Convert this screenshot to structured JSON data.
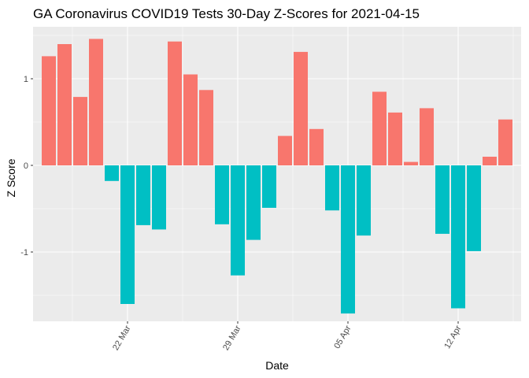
{
  "chart_data": {
    "type": "bar",
    "title": "GA Coronavirus COVID19 Tests 30-Day Z-Scores for 2021-04-15",
    "xlabel": "Date",
    "ylabel": "Z Score",
    "x_tick_labels": [
      "22 Mar",
      "29 Mar",
      "05 Apr",
      "12 Apr"
    ],
    "x_tick_dates": [
      "2021-03-22",
      "2021-03-29",
      "2021-04-05",
      "2021-04-12"
    ],
    "y_ticks": [
      -1,
      0,
      1
    ],
    "y_tick_labels": [
      "-1",
      "0",
      "1"
    ],
    "ylim": [
      -1.8,
      1.6
    ],
    "xlim": [
      "2021-03-16",
      "2021-04-16"
    ],
    "grid": true,
    "legend": "none",
    "colors": {
      "positive": "#F8766D",
      "negative": "#00BFC4",
      "panel": "#EBEBEB",
      "grid": "#FFFFFF"
    },
    "dates": [
      "2021-03-17",
      "2021-03-18",
      "2021-03-19",
      "2021-03-20",
      "2021-03-21",
      "2021-03-22",
      "2021-03-23",
      "2021-03-24",
      "2021-03-25",
      "2021-03-26",
      "2021-03-27",
      "2021-03-28",
      "2021-03-29",
      "2021-03-30",
      "2021-03-31",
      "2021-04-01",
      "2021-04-02",
      "2021-04-03",
      "2021-04-04",
      "2021-04-05",
      "2021-04-06",
      "2021-04-07",
      "2021-04-08",
      "2021-04-09",
      "2021-04-10",
      "2021-04-11",
      "2021-04-12",
      "2021-04-13",
      "2021-04-14",
      "2021-04-15"
    ],
    "values": [
      1.26,
      1.4,
      0.79,
      1.46,
      -0.18,
      -1.6,
      -0.69,
      -0.74,
      1.43,
      1.05,
      0.87,
      -0.68,
      -1.27,
      -0.86,
      -0.49,
      0.34,
      1.31,
      0.42,
      -0.52,
      -1.71,
      -0.81,
      0.85,
      0.61,
      0.04,
      0.66,
      -0.79,
      -1.65,
      -0.99,
      0.1,
      0.53
    ]
  }
}
